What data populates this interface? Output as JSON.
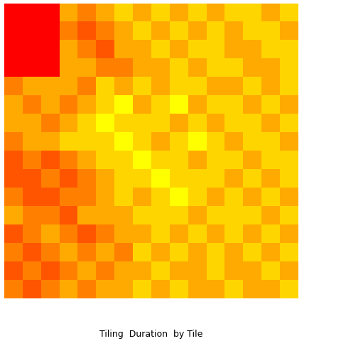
{
  "chart_data": {
    "type": "heatmap",
    "title": "Tiling  Duration  by Tile",
    "tick_labels": false,
    "cells": [
      [
        2,
        2,
        2,
        6,
        5,
        6,
        7,
        6,
        7,
        6,
        7,
        6,
        7,
        7,
        6,
        7
      ],
      [
        2,
        2,
        2,
        5,
        4,
        5,
        6,
        7,
        6,
        7,
        6,
        7,
        6,
        7,
        7,
        6
      ],
      [
        2,
        2,
        2,
        6,
        5,
        4,
        6,
        6,
        7,
        6,
        7,
        7,
        6,
        6,
        7,
        7
      ],
      [
        2,
        2,
        2,
        6,
        6,
        5,
        5,
        6,
        6,
        7,
        6,
        7,
        7,
        6,
        6,
        7
      ],
      [
        5,
        6,
        6,
        6,
        5,
        7,
        6,
        7,
        6,
        7,
        7,
        6,
        6,
        7,
        6,
        7
      ],
      [
        6,
        5,
        6,
        5,
        6,
        7,
        8,
        6,
        7,
        8,
        6,
        7,
        7,
        6,
        7,
        6
      ],
      [
        6,
        6,
        5,
        6,
        7,
        8,
        7,
        7,
        7,
        6,
        7,
        6,
        7,
        7,
        6,
        7
      ],
      [
        5,
        6,
        6,
        7,
        7,
        7,
        8,
        7,
        6,
        7,
        8,
        7,
        6,
        7,
        7,
        6
      ],
      [
        4,
        5,
        4,
        5,
        6,
        7,
        7,
        8,
        7,
        7,
        6,
        7,
        7,
        6,
        7,
        7
      ],
      [
        4,
        4,
        5,
        4,
        5,
        6,
        7,
        7,
        8,
        7,
        7,
        7,
        6,
        7,
        6,
        7
      ],
      [
        5,
        4,
        4,
        5,
        5,
        6,
        7,
        6,
        7,
        8,
        7,
        6,
        7,
        6,
        7,
        6
      ],
      [
        6,
        5,
        5,
        4,
        6,
        6,
        6,
        7,
        7,
        7,
        6,
        7,
        7,
        7,
        6,
        7
      ],
      [
        4,
        5,
        6,
        5,
        4,
        5,
        6,
        6,
        7,
        6,
        7,
        6,
        7,
        6,
        7,
        6
      ],
      [
        5,
        4,
        5,
        6,
        5,
        6,
        5,
        7,
        6,
        7,
        6,
        7,
        6,
        7,
        6,
        7
      ],
      [
        4,
        5,
        4,
        5,
        6,
        5,
        6,
        6,
        7,
        6,
        6,
        7,
        6,
        6,
        7,
        6
      ],
      [
        5,
        4,
        5,
        6,
        5,
        6,
        6,
        7,
        6,
        7,
        6,
        6,
        7,
        6,
        6,
        7
      ]
    ]
  }
}
